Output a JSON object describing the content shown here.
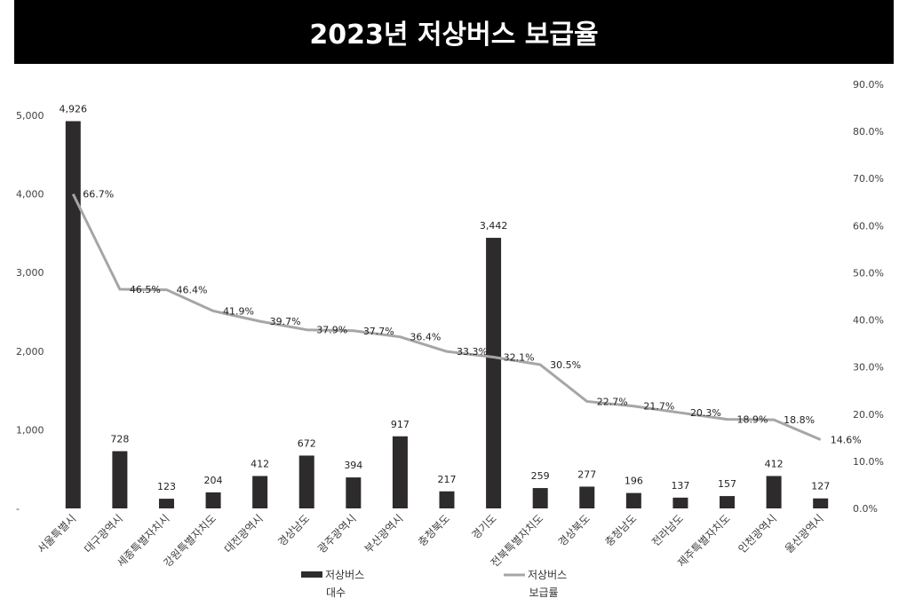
{
  "chart_data": {
    "type": "bar",
    "title": "2023년 저상버스 보급율",
    "categories": [
      "서울특별시",
      "대구광역시",
      "세종특별자치시",
      "강원특별자치도",
      "대전광역시",
      "경상남도",
      "광주광역시",
      "부산광역시",
      "충청북도",
      "경기도",
      "전북특별자치도",
      "경상북도",
      "충청남도",
      "전라남도",
      "제주특별자치도",
      "인천광역시",
      "울산광역시"
    ],
    "series": [
      {
        "name": "저상버스 대수",
        "legend_lines": [
          "저상버스",
          "대수"
        ],
        "type": "bar",
        "axis": "left",
        "values": [
          4926,
          728,
          123,
          204,
          412,
          672,
          394,
          917,
          217,
          3442,
          259,
          277,
          196,
          137,
          157,
          412,
          127
        ],
        "labels": [
          "4,926",
          "728",
          "123",
          "204",
          "412",
          "672",
          "394",
          "917",
          "217",
          "3,442",
          "259",
          "277",
          "196",
          "137",
          "157",
          "412",
          "127"
        ],
        "color": "#2e2b2c"
      },
      {
        "name": "저상버스 보급률",
        "legend_lines": [
          "저상버스",
          "보급률"
        ],
        "type": "line",
        "axis": "right",
        "values": [
          66.7,
          46.5,
          46.4,
          41.9,
          39.7,
          37.9,
          37.7,
          36.4,
          33.3,
          32.1,
          30.5,
          22.7,
          21.7,
          20.3,
          18.9,
          18.8,
          14.6
        ],
        "labels": [
          "66.7%",
          "46.5%",
          "46.4%",
          "41.9%",
          "39.7%",
          "37.9%",
          "37.7%",
          "36.4%",
          "33.3%",
          "32.1%",
          "30.5%",
          "22.7%",
          "21.7%",
          "20.3%",
          "18.9%",
          "18.8%",
          "14.6%"
        ],
        "color": "#a6a6a6"
      }
    ],
    "y_left": {
      "ylim": [
        0,
        5000
      ],
      "ticks": [
        0,
        1000,
        2000,
        3000,
        4000,
        5000
      ],
      "tick_labels": [
        "-",
        "1,000",
        "2,000",
        "3,000",
        "4,000",
        "5,000"
      ]
    },
    "y_right": {
      "ylim": [
        0,
        90
      ],
      "ticks": [
        0,
        10,
        20,
        30,
        40,
        50,
        60,
        70,
        80,
        90
      ],
      "tick_labels": [
        "0.0%",
        "10.0%",
        "20.0%",
        "30.0%",
        "40.0%",
        "50.0%",
        "60.0%",
        "70.0%",
        "80.0%",
        "90.0%"
      ]
    },
    "grid": false,
    "legend_position": "bottom"
  }
}
